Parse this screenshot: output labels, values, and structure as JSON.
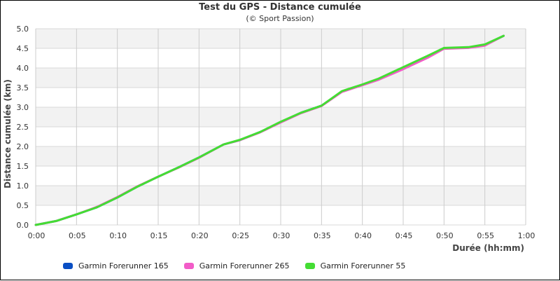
{
  "chart_data": {
    "type": "line",
    "title": "Test du GPS - Distance cumulée",
    "subtitle": "(© Sport Passion)",
    "xlabel": "Durée (hh:mm)",
    "ylabel": "Distance cumulée (km)",
    "xlim": [
      0,
      60
    ],
    "ylim": [
      0,
      5
    ],
    "x_unit": "minutes",
    "grid": true,
    "legend_position": "bottom-left",
    "x_tick_labels": [
      "0:00",
      "0:05",
      "0:10",
      "0:15",
      "0:20",
      "0:25",
      "0:30",
      "0:35",
      "0:40",
      "0:45",
      "0:50",
      "0:55",
      "1:00"
    ],
    "y_tick_labels": [
      "0.0",
      "0.5",
      "1.0",
      "1.5",
      "2.0",
      "2.5",
      "3.0",
      "3.5",
      "4.0",
      "4.5",
      "5.0"
    ],
    "x": [
      0,
      2.5,
      5,
      7.5,
      10,
      12.5,
      15,
      17.5,
      20,
      23,
      25,
      27.5,
      30,
      32.5,
      35,
      37.5,
      40,
      42,
      45,
      48,
      50,
      53,
      55,
      57.3
    ],
    "series": [
      {
        "name": "Garmin Forerunner 165",
        "color": "#0a4fc4",
        "values": [
          0.0,
          0.1,
          0.27,
          0.45,
          0.7,
          0.98,
          1.23,
          1.47,
          1.72,
          2.05,
          2.16,
          2.37,
          2.62,
          2.86,
          3.04,
          3.4,
          3.57,
          3.72,
          4.0,
          4.29,
          4.5,
          4.52,
          4.59,
          4.82
        ]
      },
      {
        "name": "Garmin Forerunner 265",
        "color": "#f25cc8",
        "values": [
          0.0,
          0.1,
          0.27,
          0.46,
          0.71,
          0.99,
          1.23,
          1.46,
          1.71,
          2.05,
          2.16,
          2.36,
          2.61,
          2.85,
          3.03,
          3.39,
          3.56,
          3.7,
          3.97,
          4.26,
          4.49,
          4.51,
          4.57,
          4.82
        ]
      },
      {
        "name": "Garmin Forerunner 55",
        "color": "#44dd33",
        "values": [
          0.0,
          0.1,
          0.27,
          0.45,
          0.7,
          0.98,
          1.23,
          1.47,
          1.72,
          2.05,
          2.17,
          2.37,
          2.63,
          2.86,
          3.04,
          3.41,
          3.58,
          3.73,
          4.02,
          4.31,
          4.51,
          4.53,
          4.6,
          4.82
        ]
      }
    ]
  }
}
